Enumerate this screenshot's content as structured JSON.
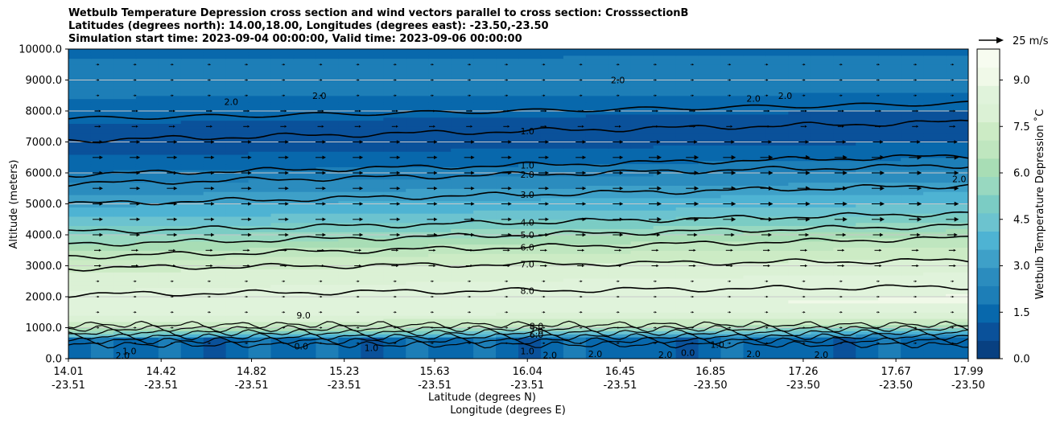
{
  "chart_data": {
    "type": "heatmap",
    "title_lines": [
      "Wetbulb Temperature Depression cross section and wind vectors parallel to cross section: CrosssectionB",
      "Latitudes (degrees north): 14.00,18.00, Longitudes (degrees east): -23.50,-23.50",
      "Simulation start time: 2023-09-04 00:00:00, Valid time: 2023-09-06 00:00:00"
    ],
    "ylabel": "Altitude (meters)",
    "xlabel_lat": "Latitude (degrees N)",
    "xlabel_lon": "Longitude (degrees E)",
    "ylim": [
      0,
      10000
    ],
    "xlim": [
      14.01,
      17.99
    ],
    "y_ticks": [
      {
        "value": 0,
        "label": "0.0"
      },
      {
        "value": 1000,
        "label": "1000.0"
      },
      {
        "value": 2000,
        "label": "2000.0"
      },
      {
        "value": 3000,
        "label": "3000.0"
      },
      {
        "value": 4000,
        "label": "4000.0"
      },
      {
        "value": 5000,
        "label": "5000.0"
      },
      {
        "value": 6000,
        "label": "6000.0"
      },
      {
        "value": 7000,
        "label": "7000.0"
      },
      {
        "value": 8000,
        "label": "8000.0"
      },
      {
        "value": 9000,
        "label": "9000.0"
      },
      {
        "value": 10000,
        "label": "10000.0"
      }
    ],
    "x_ticks": [
      {
        "lat": 14.01,
        "lat_label": "14.01",
        "lon_label": "-23.51"
      },
      {
        "lat": 14.42,
        "lat_label": "14.42",
        "lon_label": "-23.51"
      },
      {
        "lat": 14.82,
        "lat_label": "14.82",
        "lon_label": "-23.51"
      },
      {
        "lat": 15.23,
        "lat_label": "15.23",
        "lon_label": "-23.51"
      },
      {
        "lat": 15.63,
        "lat_label": "15.63",
        "lon_label": "-23.51"
      },
      {
        "lat": 16.04,
        "lat_label": "16.04",
        "lon_label": "-23.51"
      },
      {
        "lat": 16.45,
        "lat_label": "16.45",
        "lon_label": "-23.51"
      },
      {
        "lat": 16.85,
        "lat_label": "16.85",
        "lon_label": "-23.50"
      },
      {
        "lat": 17.26,
        "lat_label": "17.26",
        "lon_label": "-23.50"
      },
      {
        "lat": 17.67,
        "lat_label": "17.67",
        "lon_label": "-23.50"
      },
      {
        "lat": 17.99,
        "lat_label": "17.99",
        "lon_label": "-23.50"
      }
    ],
    "colorbar": {
      "label": "Wetbulb Temperature Depression ˚C",
      "range": [
        0,
        10
      ],
      "ticks": [
        "0.0",
        "1.5",
        "3.0",
        "4.5",
        "6.0",
        "7.5",
        "9.0"
      ],
      "tick_values": [
        0,
        1.5,
        3,
        4.5,
        6,
        7.5,
        9
      ],
      "colors_low_to_high": [
        "#084081",
        "#0a519a",
        "#0868ac",
        "#1d7eb7",
        "#2b8cbe",
        "#3ea0c8",
        "#4eb3d3",
        "#6cc3cf",
        "#7bccc4",
        "#98d8c0",
        "#a8ddb5",
        "#bfe6bf",
        "#ccebc5",
        "#dbf1d5",
        "#e0f3db",
        "#f0f9e8",
        "#f7fcf0"
      ]
    },
    "wind_key": {
      "label": "25 m/s",
      "speed": 25
    },
    "depression_profile": {
      "altitudes_m": [
        0,
        500,
        1000,
        1500,
        2000,
        2500,
        3000,
        3500,
        4000,
        4500,
        5000,
        5500,
        6000,
        6500,
        7000,
        7500,
        8000,
        8500,
        9000,
        9500,
        10000
      ],
      "values_c": [
        1.0,
        1.5,
        7.0,
        8.6,
        8.4,
        8.0,
        7.4,
        6.4,
        5.2,
        4.2,
        3.4,
        2.6,
        1.8,
        1.2,
        1.0,
        1.1,
        1.5,
        1.8,
        1.9,
        1.8,
        1.7
      ]
    },
    "contour_levels": [
      {
        "label": "1.0",
        "altitude_m": 7350
      },
      {
        "label": "1.0",
        "altitude_m": 6250
      },
      {
        "label": "2.0",
        "altitude_m": 5950
      },
      {
        "label": "3.0",
        "altitude_m": 5300
      },
      {
        "label": "4.0",
        "altitude_m": 4400
      },
      {
        "label": "5.0",
        "altitude_m": 4000
      },
      {
        "label": "6.0",
        "altitude_m": 3600
      },
      {
        "label": "7.0",
        "altitude_m": 3050
      },
      {
        "label": "8.0",
        "altitude_m": 2200
      }
    ],
    "scattered_labels": [
      {
        "label": "2.0",
        "lat": 14.73,
        "altitude_m": 8300
      },
      {
        "label": "2.0",
        "lat": 15.12,
        "altitude_m": 8500
      },
      {
        "label": "2.0",
        "lat": 16.44,
        "altitude_m": 9000
      },
      {
        "label": "2.0",
        "lat": 17.04,
        "altitude_m": 8400
      },
      {
        "label": "2.0",
        "lat": 17.18,
        "altitude_m": 8500
      },
      {
        "label": "2.0",
        "lat": 17.95,
        "altitude_m": 5800
      },
      {
        "label": "9.0",
        "lat": 15.05,
        "altitude_m": 1400
      },
      {
        "label": "0.0",
        "lat": 15.04,
        "altitude_m": 400
      },
      {
        "label": "1.0",
        "lat": 16.04,
        "altitude_m": 250
      },
      {
        "label": "2.0",
        "lat": 14.25,
        "altitude_m": 100
      },
      {
        "label": "2.0",
        "lat": 16.14,
        "altitude_m": 120
      },
      {
        "label": "2.0",
        "lat": 16.34,
        "altitude_m": 150
      },
      {
        "label": "2.0",
        "lat": 16.65,
        "altitude_m": 130
      },
      {
        "label": "2.0",
        "lat": 17.04,
        "altitude_m": 160
      },
      {
        "label": "2.0",
        "lat": 17.34,
        "altitude_m": 130
      },
      {
        "label": "0.0",
        "lat": 16.75,
        "altitude_m": 200
      },
      {
        "label": "1.0",
        "lat": 16.88,
        "altitude_m": 450
      },
      {
        "label": "1.0",
        "lat": 14.28,
        "altitude_m": 250
      },
      {
        "label": "1.0",
        "lat": 15.35,
        "altitude_m": 350
      },
      {
        "label": "8.0",
        "lat": 16.08,
        "altitude_m": 1050
      },
      {
        "label": "7.0",
        "lat": 16.08,
        "altitude_m": 900
      },
      {
        "label": "6.0",
        "lat": 16.08,
        "altitude_m": 780
      }
    ]
  }
}
